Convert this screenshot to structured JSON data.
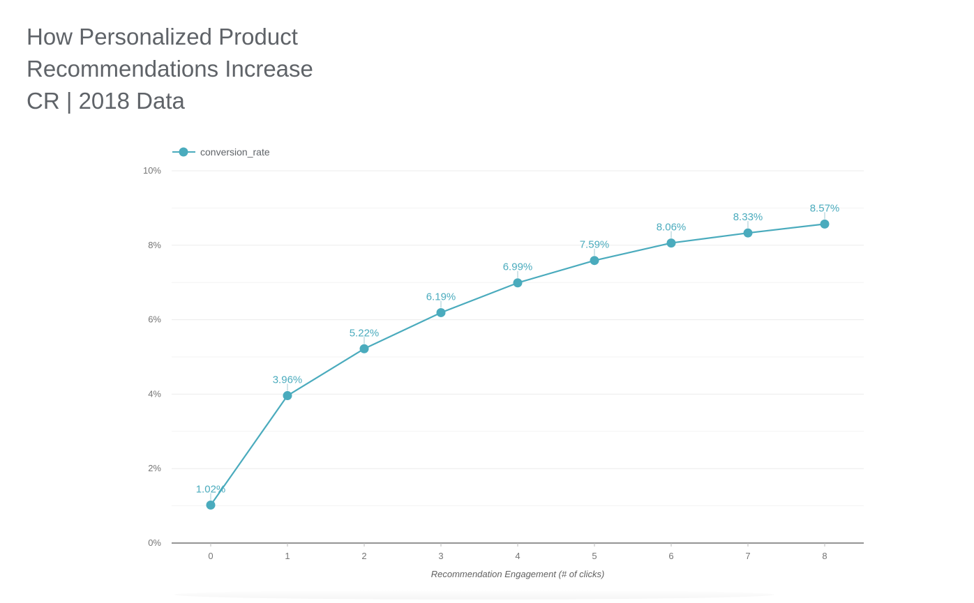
{
  "title_lines": [
    "How Personalized Product",
    "Recommendations Increase",
    "CR | 2018 Data"
  ],
  "chart_data": {
    "type": "line",
    "title": "How Personalized Product Recommendations Increase CR | 2018 Data",
    "xlabel": "Recommendation Engagement (# of clicks)",
    "ylabel": "",
    "x": [
      0,
      1,
      2,
      3,
      4,
      5,
      6,
      7,
      8
    ],
    "series": [
      {
        "name": "conversion_rate",
        "values": [
          1.02,
          3.96,
          5.22,
          6.19,
          6.99,
          7.59,
          8.06,
          8.33,
          8.57
        ],
        "labels": [
          "1.02%",
          "3.96%",
          "5.22%",
          "6.19%",
          "6.99%",
          "7.59%",
          "8.06%",
          "8.33%",
          "8.57%"
        ],
        "color": "#4aabbd"
      }
    ],
    "ylim": [
      0,
      10
    ],
    "yticks": [
      0,
      2,
      4,
      6,
      8,
      10
    ],
    "ytick_labels": [
      "0%",
      "2%",
      "4%",
      "6%",
      "8%",
      "10%"
    ],
    "xtick_labels": [
      "0",
      "1",
      "2",
      "3",
      "4",
      "5",
      "6",
      "7",
      "8"
    ],
    "grid": true,
    "legend_position": "top-left"
  }
}
